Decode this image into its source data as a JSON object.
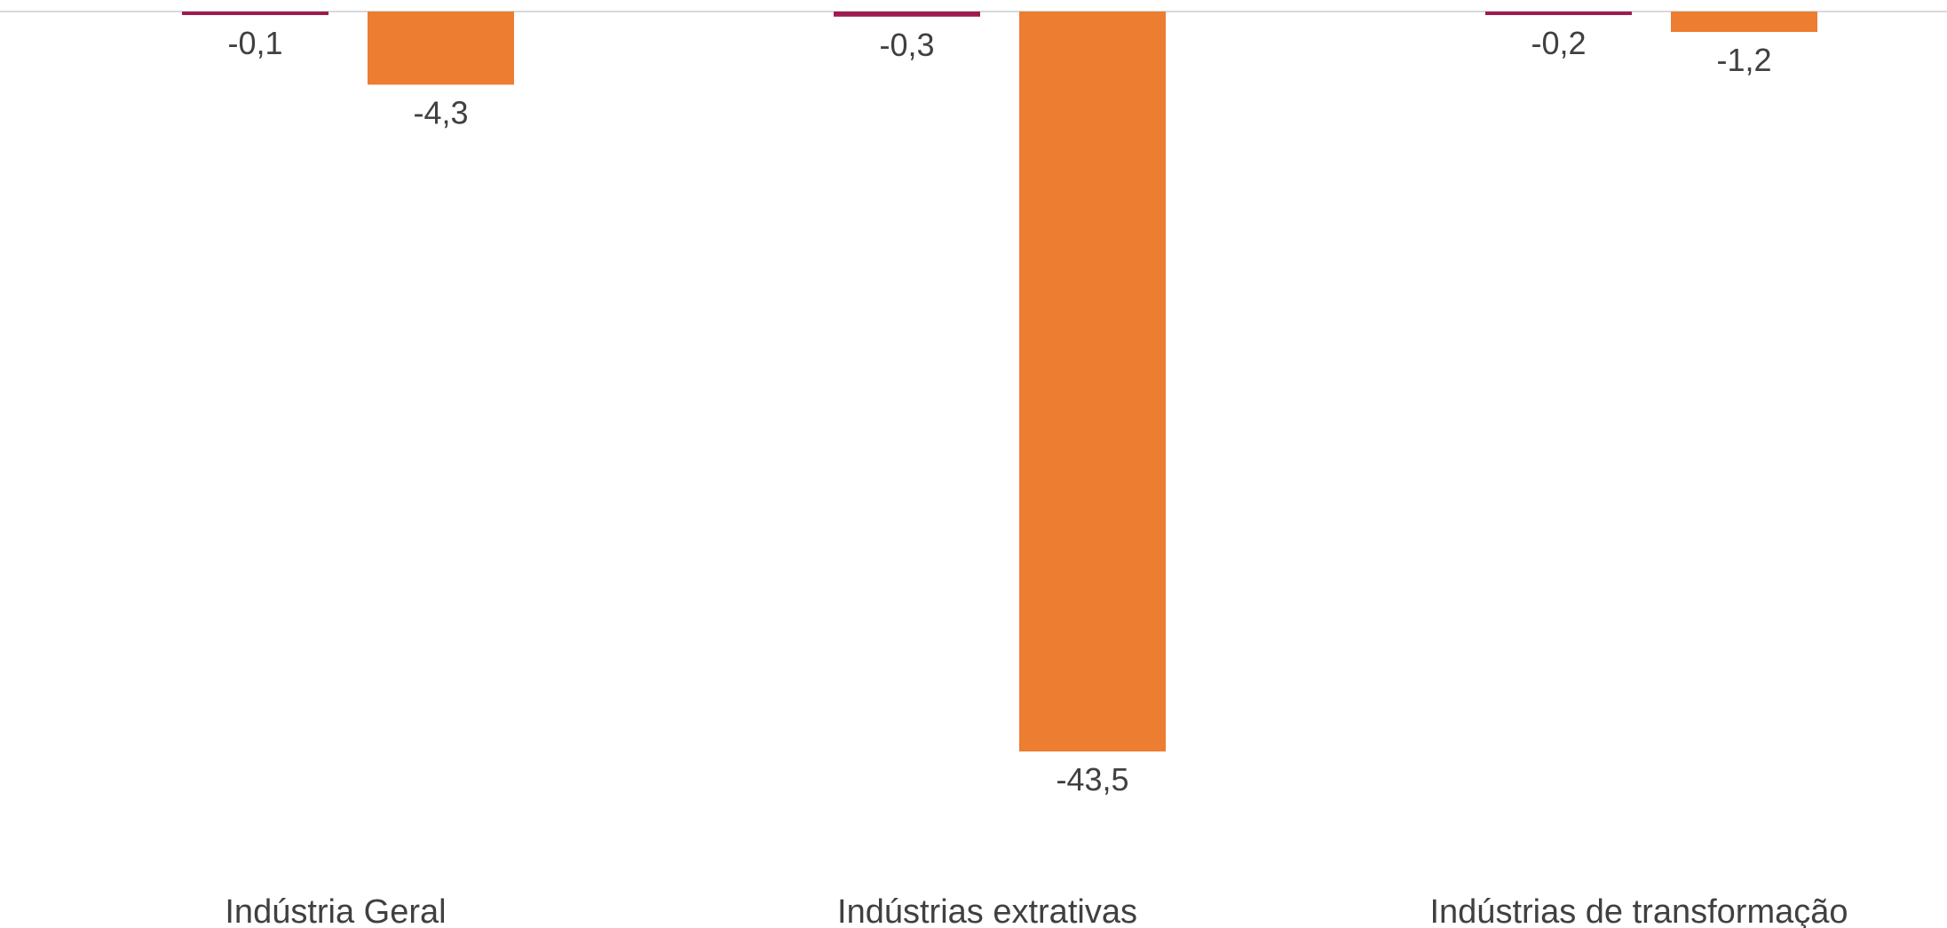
{
  "chart_data": {
    "type": "bar",
    "categories": [
      "Indústria Geral",
      "Indústrias extrativas",
      "Indústrias de transformação"
    ],
    "series": [
      {
        "color": "#9E1B4F",
        "values": [
          -0.1,
          -0.3,
          -0.2
        ],
        "labels": [
          "-0,1",
          "-0,3",
          "-0,2"
        ]
      },
      {
        "color": "#ED7D31",
        "values": [
          -4.3,
          -43.5,
          -1.2
        ],
        "labels": [
          "-4,3",
          "-43,5",
          "-1,2"
        ]
      }
    ],
    "ylim": [
      -43.5,
      0
    ],
    "grid": false,
    "legend": "none"
  }
}
